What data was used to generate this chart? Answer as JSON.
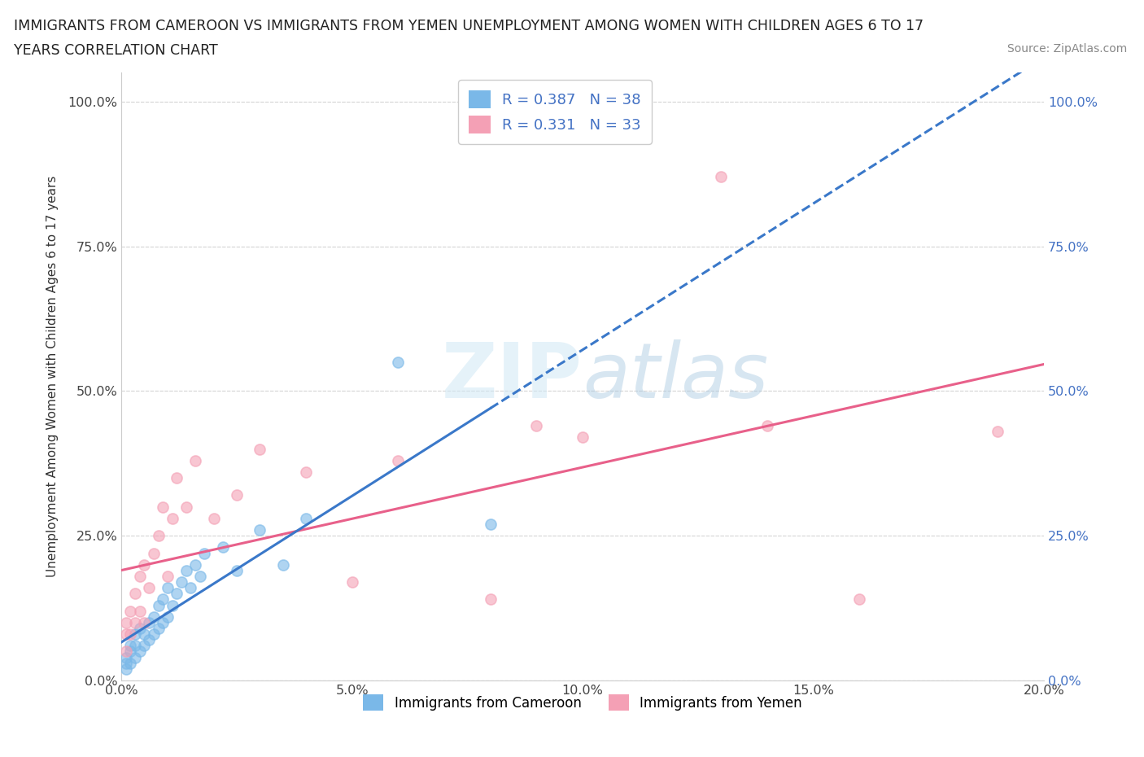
{
  "title_line1": "IMMIGRANTS FROM CAMEROON VS IMMIGRANTS FROM YEMEN UNEMPLOYMENT AMONG WOMEN WITH CHILDREN AGES 6 TO 17",
  "title_line2": "YEARS CORRELATION CHART",
  "source_text": "Source: ZipAtlas.com",
  "ylabel": "Unemployment Among Women with Children Ages 6 to 17 years",
  "xlim": [
    0.0,
    0.2
  ],
  "ylim": [
    0.0,
    1.05
  ],
  "yticks": [
    0.0,
    0.25,
    0.5,
    0.75,
    1.0
  ],
  "ytick_labels": [
    "0.0%",
    "25.0%",
    "50.0%",
    "75.0%",
    "100.0%"
  ],
  "xticks": [
    0.0,
    0.05,
    0.1,
    0.15,
    0.2
  ],
  "xtick_labels": [
    "0.0%",
    "5.0%",
    "10.0%",
    "15.0%",
    "20.0%"
  ],
  "r_cameroon": 0.387,
  "n_cameroon": 38,
  "r_yemen": 0.331,
  "n_yemen": 33,
  "color_cameroon": "#7ab8e8",
  "color_yemen": "#f4a0b5",
  "watermark_zip": "ZIP",
  "watermark_atlas": "atlas",
  "legend_label_cameroon": "Immigrants from Cameroon",
  "legend_label_yemen": "Immigrants from Yemen",
  "cameroon_x": [
    0.001,
    0.001,
    0.001,
    0.002,
    0.002,
    0.002,
    0.003,
    0.003,
    0.003,
    0.004,
    0.004,
    0.005,
    0.005,
    0.006,
    0.006,
    0.007,
    0.007,
    0.008,
    0.008,
    0.009,
    0.009,
    0.01,
    0.01,
    0.011,
    0.012,
    0.013,
    0.014,
    0.015,
    0.016,
    0.017,
    0.018,
    0.022,
    0.025,
    0.03,
    0.035,
    0.04,
    0.06,
    0.08
  ],
  "cameroon_y": [
    0.02,
    0.03,
    0.04,
    0.03,
    0.05,
    0.06,
    0.04,
    0.06,
    0.08,
    0.05,
    0.09,
    0.06,
    0.08,
    0.07,
    0.1,
    0.08,
    0.11,
    0.09,
    0.13,
    0.1,
    0.14,
    0.11,
    0.16,
    0.13,
    0.15,
    0.17,
    0.19,
    0.16,
    0.2,
    0.18,
    0.22,
    0.23,
    0.19,
    0.26,
    0.2,
    0.28,
    0.55,
    0.27
  ],
  "yemen_x": [
    0.001,
    0.001,
    0.001,
    0.002,
    0.002,
    0.003,
    0.003,
    0.004,
    0.004,
    0.005,
    0.005,
    0.006,
    0.007,
    0.008,
    0.009,
    0.01,
    0.011,
    0.012,
    0.014,
    0.016,
    0.02,
    0.025,
    0.03,
    0.04,
    0.05,
    0.06,
    0.08,
    0.09,
    0.1,
    0.13,
    0.14,
    0.16,
    0.19
  ],
  "yemen_y": [
    0.05,
    0.08,
    0.1,
    0.08,
    0.12,
    0.1,
    0.15,
    0.12,
    0.18,
    0.1,
    0.2,
    0.16,
    0.22,
    0.25,
    0.3,
    0.18,
    0.28,
    0.35,
    0.3,
    0.38,
    0.28,
    0.32,
    0.4,
    0.36,
    0.17,
    0.38,
    0.14,
    0.44,
    0.42,
    0.87,
    0.44,
    0.14,
    0.43
  ],
  "background_color": "#ffffff",
  "grid_color": "#d8d8d8"
}
